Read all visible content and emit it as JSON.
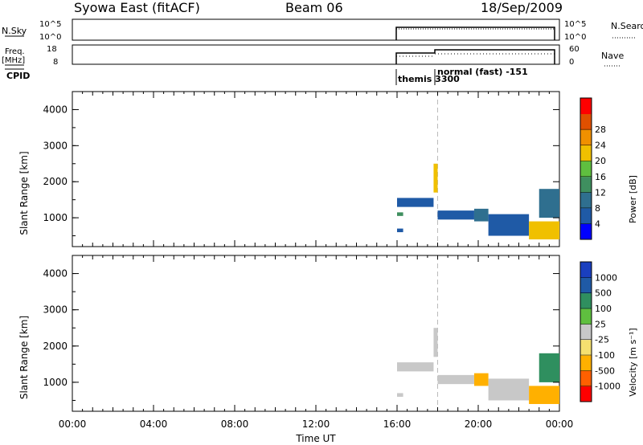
{
  "header": {
    "station": "Syowa East (fitACF)",
    "beam": "Beam 06",
    "date": "18/Sep/2009"
  },
  "nsky_panel": {
    "left_label": "N.Sky",
    "left_ticks": [
      "10^5",
      "10^0"
    ],
    "right_ticks": [
      "10^5",
      "10^0"
    ],
    "right_label": "N.Search"
  },
  "freq_panel": {
    "left_label_line1": "Freq.",
    "left_label_line2": "[MHz]",
    "left_ticks": [
      "18",
      "8"
    ],
    "right_ticks": [
      "60",
      "0"
    ],
    "right_label": "Nave"
  },
  "cpid": {
    "label": "CPID",
    "segments": [
      {
        "start": "16:00",
        "end": "18:00",
        "label": "themis 3300"
      },
      {
        "start": "18:00",
        "end": "00:00",
        "label": "normal (fast) -151"
      }
    ]
  },
  "colors": {
    "power_scale": [
      "#0000ff",
      "#1f5aa6",
      "#2f6f8f",
      "#3f8f5f",
      "#5fbf3f",
      "#f0c000",
      "#f09000",
      "#e05000",
      "#ff0000"
    ],
    "velocity_scale": [
      "#ff0000",
      "#ff6000",
      "#ffb000",
      "#f5e070",
      "#c8c8c8",
      "#5fbf3f",
      "#2f8f5f",
      "#1f5aa6",
      "#1a3fbf"
    ]
  },
  "chart_data": [
    {
      "type": "heatmap",
      "title": "",
      "ylabel": "Slant Range [km]",
      "xlabel": "",
      "xlim": [
        "00:00",
        "00:00"
      ],
      "ylim": [
        200,
        4500
      ],
      "yticks": [
        "1000",
        "2000",
        "3000",
        "4000"
      ],
      "colorbar": {
        "label": "Power [dB]",
        "ticks": [
          "4",
          "8",
          "12",
          "16",
          "20",
          "24",
          "28"
        ],
        "range": [
          0,
          32
        ]
      },
      "series": [
        {
          "t_start": 16.0,
          "t_end": 16.3,
          "r_start": 600,
          "r_end": 700,
          "value": 4
        },
        {
          "t_start": 16.0,
          "t_end": 16.3,
          "r_start": 1050,
          "r_end": 1150,
          "value": 12
        },
        {
          "t_start": 16.0,
          "t_end": 17.8,
          "r_start": 1300,
          "r_end": 1550,
          "value": 4
        },
        {
          "t_start": 17.8,
          "t_end": 18.0,
          "r_start": 1700,
          "r_end": 2500,
          "value": 20
        },
        {
          "t_start": 18.0,
          "t_end": 19.8,
          "r_start": 950,
          "r_end": 1200,
          "value": 4
        },
        {
          "t_start": 19.8,
          "t_end": 20.5,
          "r_start": 900,
          "r_end": 1250,
          "value": 8
        },
        {
          "t_start": 20.5,
          "t_end": 22.5,
          "r_start": 500,
          "r_end": 1100,
          "value": 4
        },
        {
          "t_start": 22.5,
          "t_end": 24.0,
          "r_start": 400,
          "r_end": 900,
          "value": 20
        },
        {
          "t_start": 23.0,
          "t_end": 24.0,
          "r_start": 1000,
          "r_end": 1800,
          "value": 8
        }
      ]
    },
    {
      "type": "heatmap",
      "title": "",
      "ylabel": "Slant Range [km]",
      "xlabel": "Time UT",
      "xlim": [
        "00:00",
        "00:00"
      ],
      "xticks": [
        "00:00",
        "04:00",
        "08:00",
        "12:00",
        "16:00",
        "20:00",
        "00:00"
      ],
      "ylim": [
        200,
        4500
      ],
      "yticks": [
        "1000",
        "2000",
        "3000",
        "4000"
      ],
      "colorbar": {
        "label": "Velocity [m s⁻¹]",
        "ticks": [
          "1000",
          "500",
          "100",
          "25",
          "-25",
          "-100",
          "-500",
          "-1000"
        ],
        "range": [
          -1200,
          1200
        ]
      },
      "series": [
        {
          "t_start": 16.0,
          "t_end": 16.3,
          "r_start": 600,
          "r_end": 700,
          "value": 100
        },
        {
          "t_start": 16.0,
          "t_end": 17.8,
          "r_start": 1300,
          "r_end": 1550,
          "value": -100
        },
        {
          "t_start": 17.8,
          "t_end": 18.0,
          "r_start": 1700,
          "r_end": 2500,
          "value": 25
        },
        {
          "t_start": 18.0,
          "t_end": 19.8,
          "r_start": 950,
          "r_end": 1200,
          "value": -100
        },
        {
          "t_start": 19.8,
          "t_end": 20.5,
          "r_start": 900,
          "r_end": 1250,
          "value": -500
        },
        {
          "t_start": 20.5,
          "t_end": 22.5,
          "r_start": 500,
          "r_end": 1100,
          "value": 100
        },
        {
          "t_start": 22.5,
          "t_end": 24.0,
          "r_start": 400,
          "r_end": 900,
          "value": -500
        },
        {
          "t_start": 23.0,
          "t_end": 24.0,
          "r_start": 1000,
          "r_end": 1800,
          "value": 500
        }
      ]
    }
  ]
}
